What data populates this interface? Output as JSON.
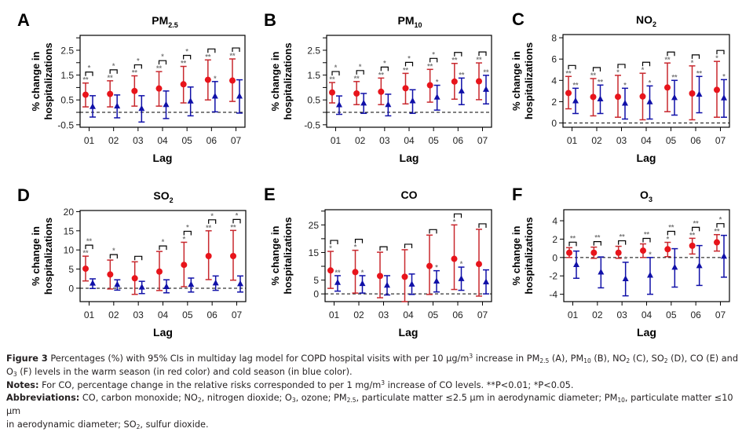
{
  "colors": {
    "warm": "#e8141b",
    "warm_bar": "#c8282e",
    "cold": "#1010a8",
    "axis": "#000000",
    "annotation": "#7a7a7a",
    "text": "#231f20"
  },
  "chart_data": [
    {
      "panel": "A",
      "type": "scatter",
      "title": "PM",
      "title_sub": "2.5",
      "xlabel": "Lag",
      "ylabel": [
        "% change in",
        "hospitalizations"
      ],
      "categories": [
        "01",
        "02",
        "03",
        "04",
        "05",
        "06",
        "07"
      ],
      "ylim": [
        -0.6,
        3.1
      ],
      "yticks": [
        -0.5,
        0.5,
        1.5,
        2.5
      ],
      "yminor": [
        0,
        1,
        2,
        3
      ],
      "reference_line": 0,
      "series": [
        {
          "name": "warm season",
          "marker": "circle",
          "values": [
            0.71,
            0.74,
            0.86,
            0.96,
            1.13,
            1.31,
            1.28
          ],
          "lower": [
            0.22,
            0.22,
            0.25,
            0.25,
            0.38,
            0.5,
            0.44
          ],
          "upper": [
            1.18,
            1.27,
            1.47,
            1.64,
            1.85,
            2.11,
            2.15
          ],
          "sig": [
            "**",
            "**",
            "**",
            "**",
            "**",
            "**",
            "**"
          ]
        },
        {
          "name": "cold season",
          "marker": "triangle",
          "values": [
            0.23,
            0.25,
            0.15,
            0.31,
            0.45,
            0.65,
            0.65
          ],
          "lower": [
            -0.19,
            -0.22,
            -0.39,
            -0.25,
            -0.14,
            0.02,
            -0.03
          ],
          "upper": [
            0.67,
            0.7,
            0.67,
            0.86,
            1.02,
            1.24,
            1.31
          ],
          "sig": [
            "",
            "",
            "",
            "",
            "",
            "*",
            ""
          ]
        }
      ],
      "diff_sig": [
        "*",
        "*",
        "*",
        "*",
        "*",
        "",
        ""
      ]
    },
    {
      "panel": "B",
      "type": "scatter",
      "title": "PM",
      "title_sub": "10",
      "xlabel": "Lag",
      "ylabel": [
        "% change in",
        "hospitalizations"
      ],
      "categories": [
        "01",
        "02",
        "03",
        "04",
        "05",
        "06",
        "07"
      ],
      "ylim": [
        -0.6,
        3.1
      ],
      "yticks": [
        -0.5,
        0.5,
        1.5,
        2.5
      ],
      "yminor": [
        0,
        1,
        2,
        3
      ],
      "reference_line": 0,
      "series": [
        {
          "name": "warm season",
          "marker": "circle",
          "values": [
            0.8,
            0.76,
            0.83,
            0.97,
            1.09,
            1.24,
            1.25
          ],
          "lower": [
            0.38,
            0.31,
            0.31,
            0.34,
            0.41,
            0.53,
            0.51
          ],
          "upper": [
            1.2,
            1.24,
            1.38,
            1.57,
            1.73,
            1.97,
            1.99
          ],
          "sig": [
            "**",
            "**",
            "**",
            "**",
            "**",
            "**",
            "**"
          ]
        },
        {
          "name": "cold season",
          "marker": "triangle",
          "values": [
            0.3,
            0.37,
            0.31,
            0.46,
            0.61,
            0.86,
            0.92
          ],
          "lower": [
            -0.08,
            -0.04,
            -0.14,
            -0.04,
            0.09,
            0.31,
            0.34
          ],
          "upper": [
            0.66,
            0.76,
            0.73,
            0.91,
            1.09,
            1.38,
            1.49
          ],
          "sig": [
            "",
            "",
            "",
            "",
            "*",
            "**",
            "**"
          ]
        }
      ],
      "diff_sig": [
        "*",
        "*",
        "*",
        "*",
        "*",
        "",
        ""
      ]
    },
    {
      "panel": "C",
      "type": "scatter",
      "title": "NO",
      "title_sub": "2",
      "xlabel": "Lag",
      "ylabel": [
        "% change in",
        "hospitalizations"
      ],
      "categories": [
        "01",
        "02",
        "03",
        "04",
        "05",
        "06",
        "07"
      ],
      "ylim": [
        -0.4,
        8.3
      ],
      "yticks": [
        0,
        2,
        4,
        6,
        8
      ],
      "yminor": [],
      "reference_line": 0,
      "series": [
        {
          "name": "warm season",
          "marker": "circle",
          "values": [
            2.81,
            2.44,
            2.46,
            2.49,
            3.33,
            2.77,
            3.11
          ],
          "lower": [
            1.33,
            0.67,
            0.54,
            0.3,
            1.06,
            0.3,
            0.54
          ],
          "upper": [
            4.37,
            4.17,
            4.47,
            4.67,
            5.63,
            5.36,
            5.78
          ],
          "sig": [
            "**",
            "**",
            "*",
            "*",
            "**",
            "*",
            "*"
          ]
        },
        {
          "name": "cold season",
          "marker": "triangle",
          "values": [
            2.07,
            2.25,
            1.85,
            1.98,
            2.37,
            2.69,
            2.35
          ],
          "lower": [
            0.89,
            0.89,
            0.37,
            0.37,
            0.74,
            0.96,
            0.54
          ],
          "upper": [
            3.26,
            3.56,
            3.26,
            3.48,
            4.0,
            4.37,
            4.07
          ],
          "sig": [
            "**",
            "**",
            "*",
            "*",
            "**",
            "**",
            "*"
          ]
        }
      ],
      "diff_sig": [
        "",
        "",
        "",
        "",
        "",
        "",
        ""
      ]
    },
    {
      "panel": "D",
      "type": "scatter",
      "title": "SO",
      "title_sub": "2",
      "xlabel": "Lag",
      "ylabel": [
        "% change in",
        "hospitalizations"
      ],
      "categories": [
        "01",
        "02",
        "03",
        "04",
        "05",
        "06",
        "07"
      ],
      "ylim": [
        -3.5,
        20.3
      ],
      "yticks": [
        0,
        5,
        10,
        15,
        20
      ],
      "yminor": [],
      "reference_line": 0,
      "series": [
        {
          "name": "warm season",
          "marker": "circle",
          "values": [
            5.1,
            3.6,
            2.6,
            4.35,
            6.1,
            8.4,
            8.4
          ],
          "lower": [
            1.9,
            -0.2,
            -1.6,
            -0.6,
            0.4,
            2.25,
            2.1
          ],
          "upper": [
            8.37,
            7.35,
            6.9,
            9.6,
            12.0,
            15.0,
            15.1
          ],
          "sig": [
            "**",
            "",
            "",
            "",
            "*",
            "**",
            "**"
          ]
        },
        {
          "name": "cold season",
          "marker": "triangle",
          "values": [
            1.3,
            0.95,
            0.27,
            0.4,
            0.95,
            1.35,
            1.15
          ],
          "lower": [
            -0.07,
            -0.5,
            -1.4,
            -1.2,
            -1.0,
            -0.55,
            -1.0
          ],
          "upper": [
            2.45,
            2.2,
            1.8,
            2.2,
            2.65,
            3.2,
            3.2
          ],
          "sig": [
            "",
            "",
            "",
            "",
            "",
            "",
            ""
          ]
        }
      ],
      "diff_sig": [
        "**",
        "*",
        "",
        "*",
        "*",
        "*",
        "*"
      ]
    },
    {
      "panel": "E",
      "type": "scatter",
      "title": "CO",
      "title_sub": "",
      "xlabel": "Lag",
      "ylabel": [
        "% change in",
        "hospitalizations"
      ],
      "categories": [
        "01",
        "02",
        "03",
        "04",
        "05",
        "06",
        "07"
      ],
      "ylim": [
        -2.8,
        30.5
      ],
      "yticks": [
        0,
        5,
        15,
        25
      ],
      "yminor": [
        10,
        20,
        30
      ],
      "reference_line": 0,
      "series": [
        {
          "name": "warm season",
          "marker": "circle",
          "values": [
            8.5,
            7.9,
            6.5,
            6.2,
            10.1,
            12.7,
            10.8
          ],
          "lower": [
            2.0,
            0.3,
            -1.4,
            -2.8,
            -0.2,
            1.6,
            -0.8
          ],
          "upper": [
            15.4,
            15.8,
            15.1,
            16.0,
            21.3,
            25.0,
            23.4
          ],
          "sig": [
            "*",
            "*",
            "",
            "",
            "",
            "*",
            ""
          ]
        },
        {
          "name": "cold season",
          "marker": "triangle",
          "values": [
            4.1,
            3.7,
            3.1,
            3.5,
            4.6,
            5.5,
            4.3
          ],
          "lower": [
            1.0,
            0.3,
            -0.4,
            -0.2,
            0.7,
            1.3,
            0.0
          ],
          "upper": [
            6.6,
            6.6,
            6.6,
            7.2,
            8.4,
            9.7,
            8.7
          ],
          "sig": [
            "**",
            "*",
            "",
            "",
            "*",
            "*",
            ""
          ]
        }
      ],
      "diff_sig": [
        "",
        "",
        "",
        "",
        "",
        "",
        ""
      ]
    },
    {
      "panel": "F",
      "type": "scatter",
      "title": "O",
      "title_sub": "3",
      "xlabel": "Lag",
      "ylabel": [
        "% change in",
        "hospitalizations"
      ],
      "categories": [
        "01",
        "02",
        "03",
        "04",
        "05",
        "06",
        "07"
      ],
      "ylim": [
        -4.8,
        5.2
      ],
      "yticks": [
        -4,
        -2,
        0,
        2,
        4
      ],
      "yminor": [],
      "reference_line": 0,
      "series": [
        {
          "name": "warm season",
          "marker": "circle",
          "values": [
            0.52,
            0.52,
            0.52,
            0.75,
            0.9,
            1.28,
            1.65
          ],
          "lower": [
            0.0,
            -0.09,
            -0.09,
            0.0,
            0.09,
            0.38,
            0.7
          ],
          "upper": [
            1.07,
            1.13,
            1.22,
            1.48,
            1.65,
            2.09,
            2.49
          ],
          "sig": [
            "",
            "",
            "",
            "",
            "*",
            "**",
            "**"
          ]
        },
        {
          "name": "cold season",
          "marker": "triangle",
          "values": [
            -0.78,
            -1.59,
            -2.32,
            -1.94,
            -1.07,
            -0.9,
            0.12
          ],
          "lower": [
            -2.26,
            -3.3,
            -4.17,
            -4.0,
            -3.22,
            -3.04,
            -2.14
          ],
          "upper": [
            0.7,
            0.06,
            -0.52,
            0.0,
            0.96,
            1.3,
            2.41
          ],
          "sig": [
            "",
            "",
            "*",
            "*",
            "",
            "",
            ""
          ]
        }
      ],
      "diff_sig": [
        "**",
        "**",
        "**",
        "**",
        "**",
        "**",
        "*"
      ]
    }
  ],
  "caption": {
    "figure_label": "Figure 3",
    "line1_a": "Percentages (%) with 95% CIs in multiday lag model for COPD hospital visits with per 10 μg/m",
    "line1_b": "3",
    "line1_c": " increase in PM",
    "line1_d": "2.5",
    "line1_e": " (A), PM",
    "line1_f": "10",
    "line1_g": " (B), NO",
    "line1_h": "2",
    "line1_i": " (C), SO",
    "line1_j": "2",
    "line1_k": " (D), CO (E) and",
    "line2_a": "O",
    "line2_b": "3",
    "line2_c": " (F) levels in the warm season (in red color) and cold season (in blue color).",
    "notes_label": "Notes:",
    "notes_text_a": " For CO, percentage change in the relative risks corresponded to per 1 mg/m",
    "notes_text_b": "3",
    "notes_text_c": " increase of CO levels. **P<0.01; *P<0.05.",
    "abbr_label": "Abbreviations:",
    "abbr_a": " CO, carbon monoxide; NO",
    "abbr_b": "2",
    "abbr_c": ", nitrogen dioxide; O",
    "abbr_d": "3",
    "abbr_e": ", ozone; PM",
    "abbr_f": "2.5",
    "abbr_g": ", particulate matter ≤2.5 μm in aerodynamic diameter; PM",
    "abbr_h": "10",
    "abbr_i": ", particulate matter ≤10 μm",
    "abbr_j": "in aerodynamic diameter; SO",
    "abbr_k": "2",
    "abbr_l": ", sulfur dioxide."
  }
}
